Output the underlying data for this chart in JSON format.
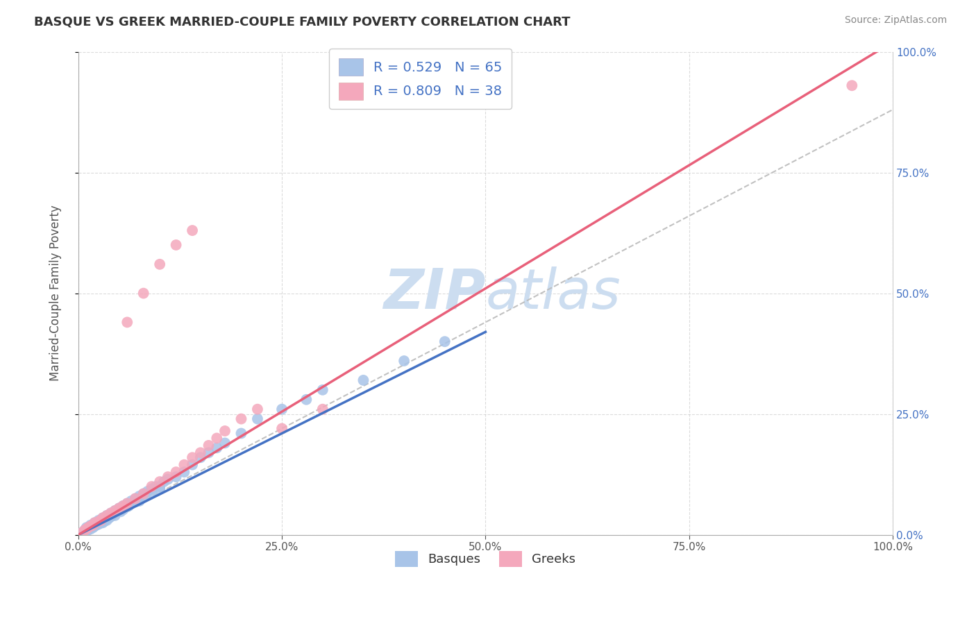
{
  "title": "BASQUE VS GREEK MARRIED-COUPLE FAMILY POVERTY CORRELATION CHART",
  "source": "Source: ZipAtlas.com",
  "ylabel": "Married-Couple Family Poverty",
  "basque_R": 0.529,
  "basque_N": 65,
  "greek_R": 0.809,
  "greek_N": 38,
  "basque_color": "#a8c4e8",
  "greek_color": "#f4a8bc",
  "basque_line_color": "#4472c4",
  "greek_line_color": "#e8607a",
  "watermark_color": "#ccddf0",
  "legend_label_basque": "Basques",
  "legend_label_greek": "Greeks",
  "xlim": [
    0,
    1
  ],
  "ylim": [
    0,
    1
  ],
  "xtick_pos": [
    0.0,
    0.25,
    0.5,
    0.75,
    1.0
  ],
  "xtick_labels": [
    "0.0%",
    "25.0%",
    "50.0%",
    "75.0%",
    "100.0%"
  ],
  "ytick_labels_right": [
    "0.0%",
    "25.0%",
    "50.0%",
    "75.0%",
    "100.0%"
  ],
  "background_color": "#ffffff",
  "grid_color": "#cccccc",
  "basque_x": [
    0.005,
    0.008,
    0.01,
    0.01,
    0.012,
    0.015,
    0.015,
    0.018,
    0.02,
    0.02,
    0.022,
    0.025,
    0.025,
    0.028,
    0.03,
    0.03,
    0.03,
    0.032,
    0.035,
    0.035,
    0.038,
    0.04,
    0.04,
    0.04,
    0.042,
    0.045,
    0.045,
    0.05,
    0.05,
    0.052,
    0.055,
    0.055,
    0.06,
    0.06,
    0.062,
    0.065,
    0.07,
    0.07,
    0.075,
    0.075,
    0.08,
    0.08,
    0.085,
    0.09,
    0.09,
    0.095,
    0.1,
    0.1,
    0.105,
    0.11,
    0.12,
    0.13,
    0.14,
    0.15,
    0.16,
    0.17,
    0.18,
    0.2,
    0.22,
    0.25,
    0.28,
    0.3,
    0.35,
    0.4,
    0.45
  ],
  "basque_y": [
    0.005,
    0.01,
    0.008,
    0.015,
    0.01,
    0.012,
    0.02,
    0.015,
    0.018,
    0.025,
    0.02,
    0.022,
    0.03,
    0.025,
    0.025,
    0.035,
    0.03,
    0.028,
    0.03,
    0.04,
    0.035,
    0.038,
    0.045,
    0.04,
    0.042,
    0.05,
    0.04,
    0.05,
    0.055,
    0.048,
    0.06,
    0.052,
    0.065,
    0.058,
    0.06,
    0.07,
    0.068,
    0.075,
    0.07,
    0.08,
    0.085,
    0.078,
    0.09,
    0.088,
    0.095,
    0.1,
    0.1,
    0.095,
    0.11,
    0.115,
    0.12,
    0.13,
    0.145,
    0.16,
    0.17,
    0.18,
    0.19,
    0.21,
    0.24,
    0.26,
    0.28,
    0.3,
    0.32,
    0.36,
    0.4
  ],
  "greek_x": [
    0.005,
    0.008,
    0.01,
    0.012,
    0.015,
    0.018,
    0.02,
    0.025,
    0.028,
    0.03,
    0.035,
    0.04,
    0.045,
    0.05,
    0.055,
    0.06,
    0.07,
    0.08,
    0.09,
    0.1,
    0.11,
    0.12,
    0.13,
    0.14,
    0.15,
    0.16,
    0.17,
    0.18,
    0.2,
    0.22,
    0.06,
    0.08,
    0.1,
    0.12,
    0.14,
    0.25,
    0.3,
    0.95
  ],
  "greek_y": [
    0.005,
    0.01,
    0.012,
    0.015,
    0.018,
    0.02,
    0.025,
    0.028,
    0.03,
    0.035,
    0.04,
    0.045,
    0.05,
    0.055,
    0.06,
    0.065,
    0.075,
    0.085,
    0.1,
    0.11,
    0.12,
    0.13,
    0.145,
    0.16,
    0.17,
    0.185,
    0.2,
    0.215,
    0.24,
    0.26,
    0.44,
    0.5,
    0.56,
    0.6,
    0.63,
    0.22,
    0.26,
    0.93
  ],
  "basque_line_x": [
    0.0,
    0.5
  ],
  "basque_line_y": [
    0.0,
    0.42
  ],
  "greek_line_x": [
    0.0,
    1.0
  ],
  "greek_line_y": [
    0.0,
    1.02
  ],
  "diag_line_x": [
    0.0,
    1.0
  ],
  "diag_line_y": [
    0.0,
    0.88
  ]
}
